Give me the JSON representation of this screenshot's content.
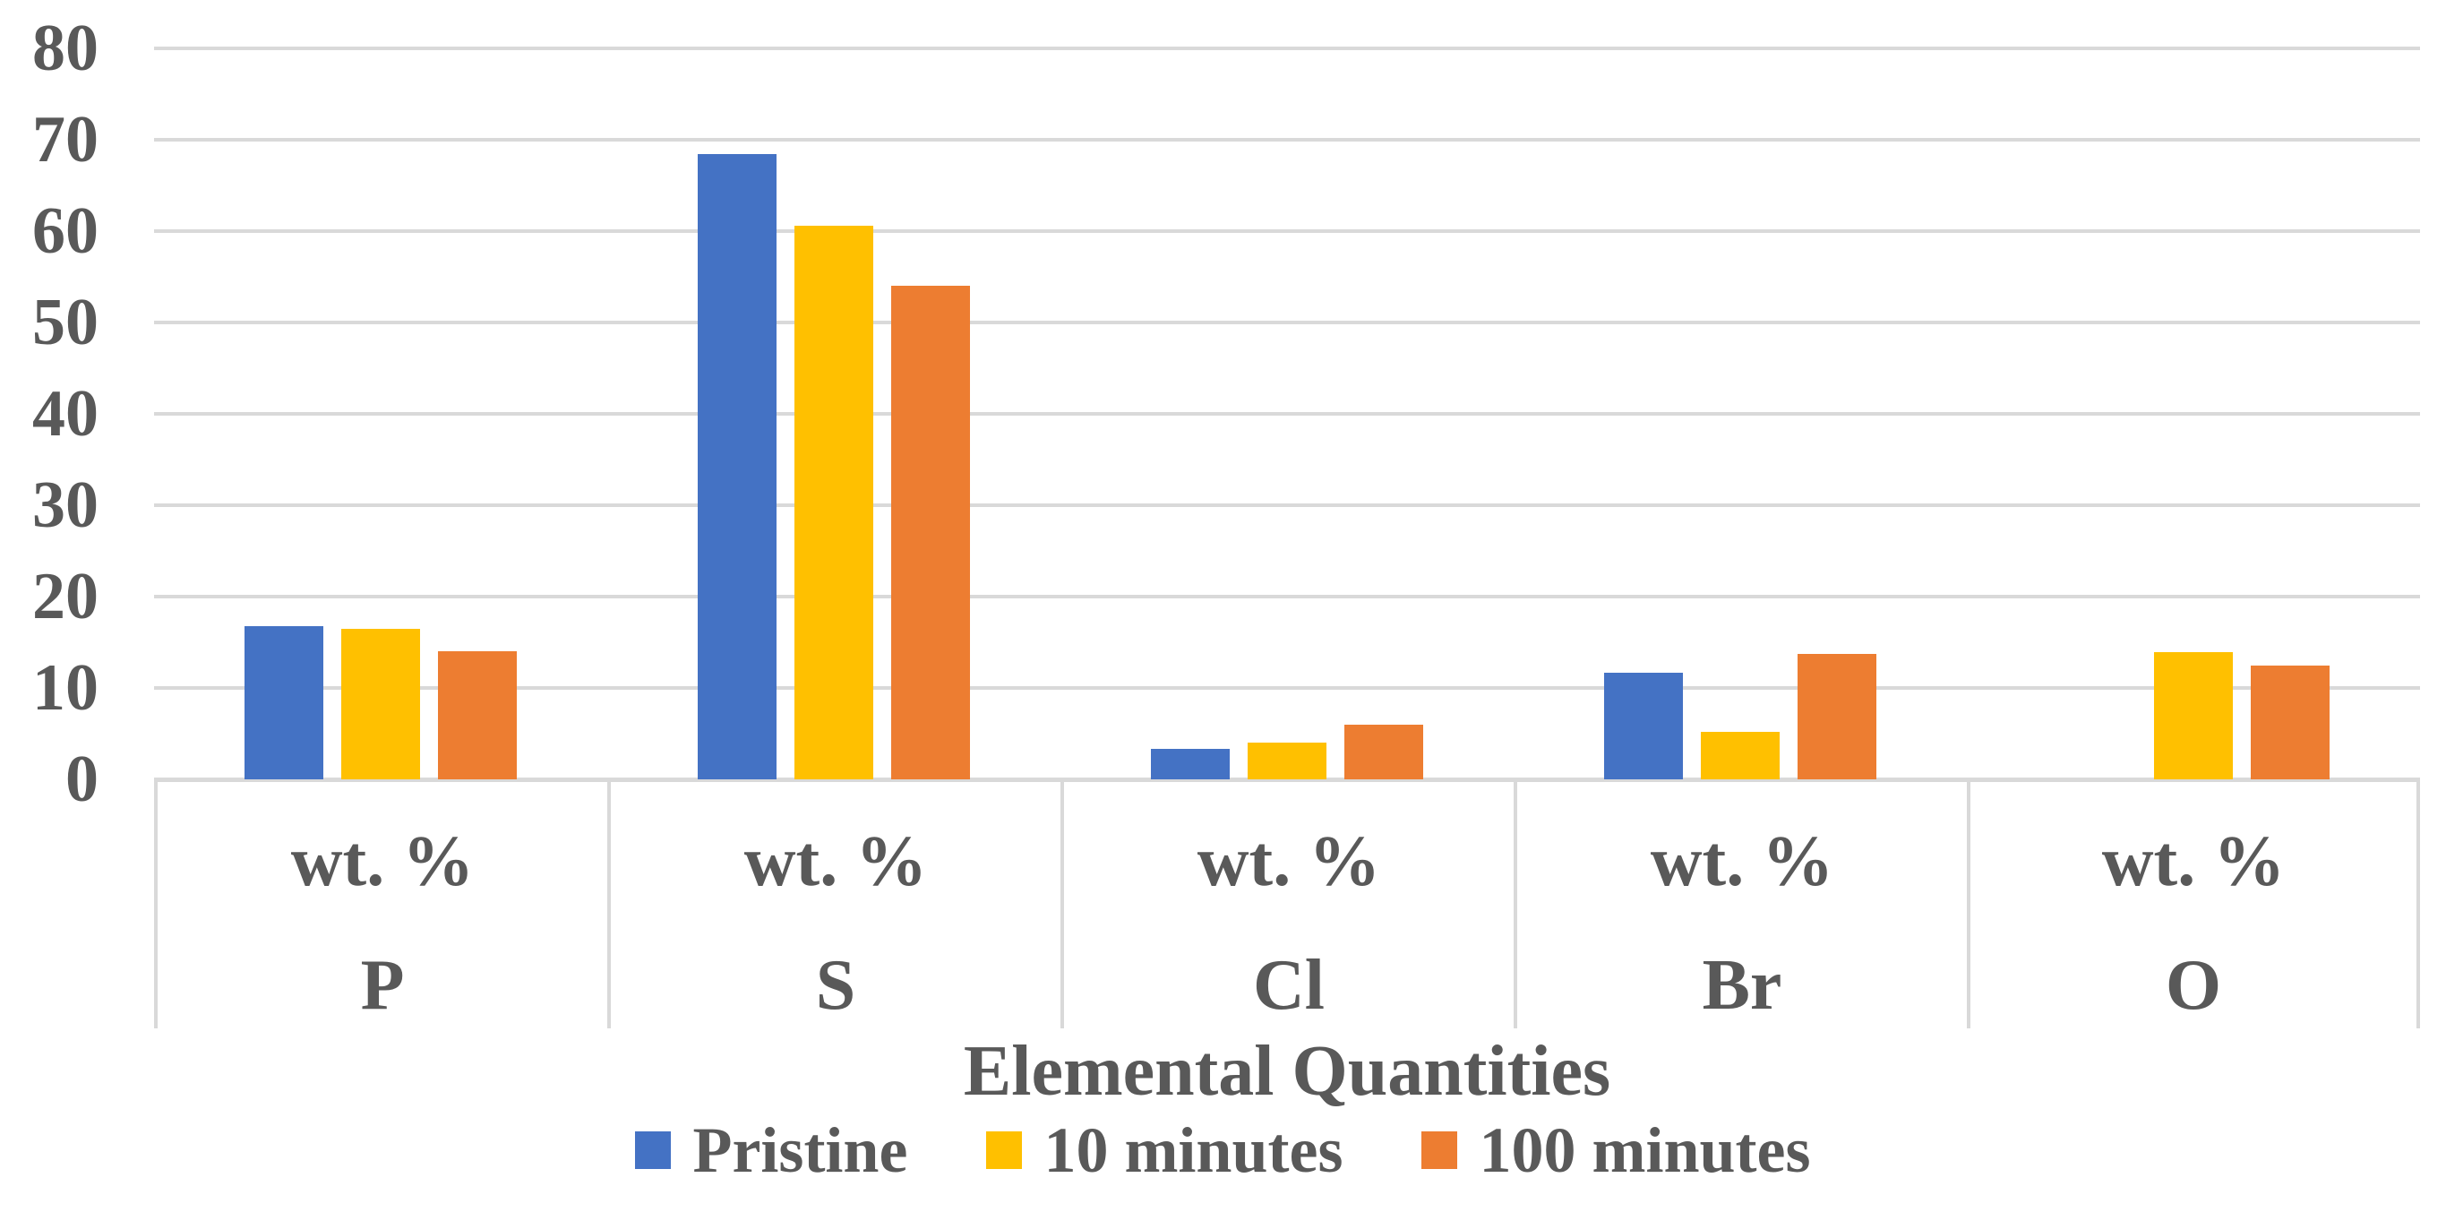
{
  "chart_data": {
    "type": "bar",
    "xlabel": "Elemental Quantities",
    "ylabel": "",
    "ylim": [
      0,
      80
    ],
    "yticks": [
      0,
      10,
      20,
      30,
      40,
      50,
      60,
      70,
      80
    ],
    "grid": true,
    "legend_position": "bottom",
    "categories": [
      "P",
      "S",
      "Cl",
      "Br",
      "O"
    ],
    "category_cells": [
      {
        "unit": "wt. %",
        "element": "P"
      },
      {
        "unit": "wt. %",
        "element": "S"
      },
      {
        "unit": "wt. %",
        "element": "Cl"
      },
      {
        "unit": "wt. %",
        "element": "Br"
      },
      {
        "unit": "wt. %",
        "element": "O"
      }
    ],
    "series": [
      {
        "name": "Pristine",
        "color": "#4472C4",
        "values": [
          16.8,
          68.4,
          3.3,
          11.7,
          0
        ]
      },
      {
        "name": "10 minutes",
        "color": "#FFC000",
        "values": [
          16.5,
          60.6,
          4.0,
          5.2,
          13.9
        ]
      },
      {
        "name": "100 minutes",
        "color": "#ED7D31",
        "values": [
          14.0,
          54.0,
          6.0,
          13.7,
          12.5
        ]
      }
    ],
    "styles": {
      "text_color": "#595959",
      "gridline_color": "#D9D9D9",
      "background_color": "#FFFFFF"
    }
  }
}
